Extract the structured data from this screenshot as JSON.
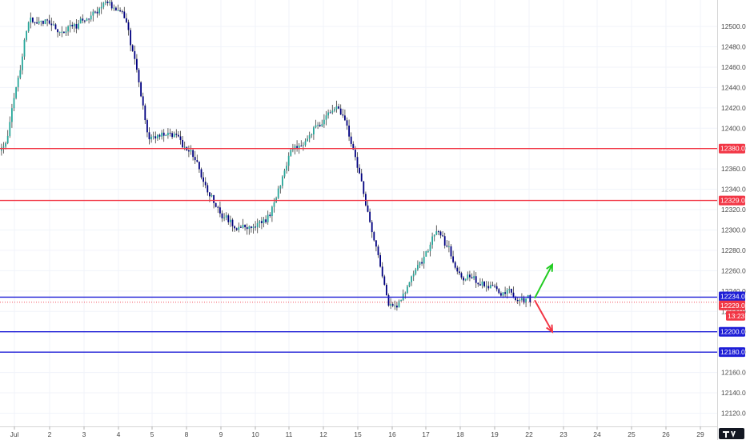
{
  "chart_data": {
    "type": "candlestick",
    "title": "",
    "xlabel": "",
    "ylabel": "",
    "ylim": [
      12107,
      12526
    ],
    "x_tick_labels": [
      "Jul",
      "2",
      "3",
      "4",
      "5",
      "8",
      "9",
      "10",
      "11",
      "12",
      "15",
      "16",
      "17",
      "18",
      "19",
      "22",
      "23",
      "24",
      "25",
      "26",
      "29"
    ],
    "y_tick_labels": [
      "12500.0",
      "12480.0",
      "12460.0",
      "12440.0",
      "12420.0",
      "12400.0",
      "12380.0",
      "12360.0",
      "12340.0",
      "12320.0",
      "12300.0",
      "12280.0",
      "12260.0",
      "12240.0",
      "12220.0",
      "12200.0",
      "12180.0",
      "12160.0",
      "12140.0",
      "12120.0"
    ],
    "y_tick_values": [
      12500,
      12480,
      12460,
      12440,
      12420,
      12400,
      12380,
      12360,
      12340,
      12320,
      12300,
      12280,
      12260,
      12240,
      12220,
      12200,
      12180,
      12160,
      12140,
      12120
    ],
    "horizontal_levels": [
      {
        "value": 12380,
        "label": "12380.0",
        "color": "#f23645"
      },
      {
        "value": 12329,
        "label": "12329.0",
        "color": "#f23645"
      },
      {
        "value": 12234,
        "label": "12234.0",
        "color": "#1e1ed6"
      },
      {
        "value": 12200,
        "label": "12200.0",
        "color": "#1e1ed6"
      },
      {
        "value": 12180,
        "label": "12180.0",
        "color": "#1e1ed6"
      }
    ],
    "last_price": {
      "value": 12229,
      "label": "12229.0",
      "countdown": "13:23",
      "color": "#f23645"
    },
    "session_closes": [
      12378,
      12512,
      12500,
      12498,
      12520,
      12515,
      12380,
      12396,
      12366,
      12310,
      12300,
      12310,
      12382,
      12405,
      12420,
      12330,
      12212,
      12250,
      12300,
      12255,
      12245,
      12236,
      12229
    ],
    "projections": [
      {
        "direction": "up",
        "color": "#22cc22",
        "from": 12233,
        "to": 12266
      },
      {
        "direction": "down",
        "color": "#f23645",
        "from": 12231,
        "to": 12200
      }
    ],
    "colors": {
      "up_candle": "#26a69a",
      "down_candle": "#000080",
      "wick": "#3b3b3b",
      "grid": "#f0f3fa",
      "axis_text": "#4a4a4a"
    },
    "grid": true
  }
}
